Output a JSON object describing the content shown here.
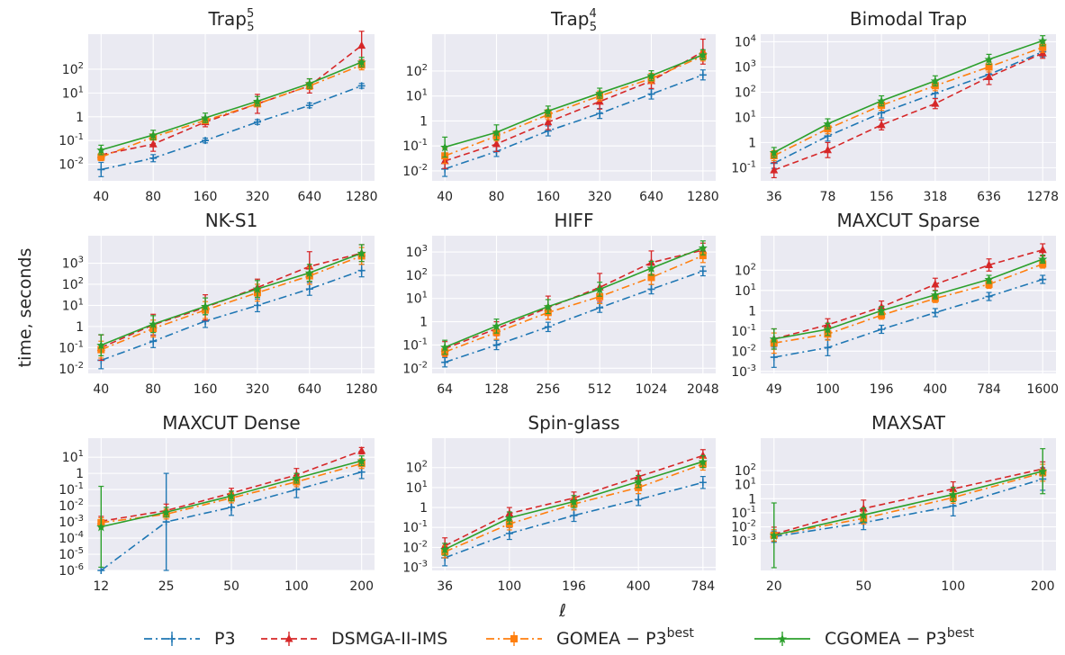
{
  "figure": {
    "ylabel": "time, seconds",
    "xlabel": "ℓ"
  },
  "legend": [
    {
      "label": "P3",
      "color": "#1f77b4",
      "dash": "dashdot",
      "marker": "plus"
    },
    {
      "label": "DSMGA-II-IMS",
      "color": "#d62728",
      "dash": "dashed",
      "marker": "triangle"
    },
    {
      "label": "GOMEA − P3",
      "sup": "best",
      "color": "#ff7f0e",
      "dash": "dashdot",
      "marker": "square"
    },
    {
      "label": "CGOMEA − P3",
      "sup": "best",
      "color": "#2ca02c",
      "dash": "solid",
      "marker": "star"
    }
  ],
  "chart_data": [
    {
      "type": "line",
      "title": "Trap",
      "title_sup": "5",
      "title_sub": "5",
      "categories": [
        "40",
        "80",
        "160",
        "320",
        "640",
        "1280"
      ],
      "yscale": "log",
      "ylim": [
        0.002,
        3000
      ],
      "yticks": [
        {
          "v": 0.01,
          "b": "10",
          "e": "-2"
        },
        {
          "v": 0.1,
          "b": "10",
          "e": "-1"
        },
        {
          "v": 1,
          "b": "1",
          "e": ""
        },
        {
          "v": 10,
          "b": "10",
          "e": "1"
        },
        {
          "v": 100,
          "b": "10",
          "e": "2"
        }
      ],
      "series": [
        {
          "name": "P3",
          "values": [
            0.006,
            0.018,
            0.1,
            0.6,
            3,
            20
          ],
          "err": [
            0.3,
            0.15,
            0.1,
            0.1,
            0.1,
            0.1
          ]
        },
        {
          "name": "DSMGA-II-IMS",
          "values": [
            0.025,
            0.07,
            0.6,
            3.5,
            20,
            1000
          ],
          "err": [
            0.2,
            0.3,
            0.2,
            0.4,
            0.3,
            0.6
          ]
        },
        {
          "name": "GOMEA",
          "values": [
            0.02,
            0.14,
            0.7,
            3.5,
            20,
            150
          ],
          "err": [
            0.15,
            0.1,
            0.1,
            0.1,
            0.15,
            0.2
          ]
        },
        {
          "name": "CGOMEA",
          "values": [
            0.04,
            0.17,
            0.9,
            4.5,
            25,
            200
          ],
          "err": [
            0.2,
            0.2,
            0.2,
            0.2,
            0.2,
            0.2
          ]
        }
      ]
    },
    {
      "type": "line",
      "title": "Trap",
      "title_sup": "4",
      "title_sub": "5",
      "categories": [
        "40",
        "80",
        "160",
        "320",
        "640",
        "1280"
      ],
      "yscale": "log",
      "ylim": [
        0.004,
        3000
      ],
      "yticks": [
        {
          "v": 0.01,
          "b": "10",
          "e": "-2"
        },
        {
          "v": 0.1,
          "b": "10",
          "e": "-1"
        },
        {
          "v": 1,
          "b": "1",
          "e": ""
        },
        {
          "v": 10,
          "b": "10",
          "e": "1"
        },
        {
          "v": 100,
          "b": "10",
          "e": "2"
        }
      ],
      "series": [
        {
          "name": "P3",
          "values": [
            0.012,
            0.06,
            0.4,
            2,
            12,
            70
          ],
          "err": [
            0.3,
            0.2,
            0.2,
            0.2,
            0.2,
            0.2
          ]
        },
        {
          "name": "DSMGA-II-IMS",
          "values": [
            0.025,
            0.12,
            0.9,
            6,
            40,
            600
          ],
          "err": [
            0.3,
            0.3,
            0.3,
            0.3,
            0.3,
            0.5
          ]
        },
        {
          "name": "GOMEA",
          "values": [
            0.04,
            0.25,
            1.8,
            10,
            50,
            400
          ],
          "err": [
            0.3,
            0.2,
            0.2,
            0.2,
            0.2,
            0.2
          ]
        },
        {
          "name": "CGOMEA",
          "values": [
            0.09,
            0.35,
            2.5,
            13,
            65,
            450
          ],
          "err": [
            0.4,
            0.3,
            0.2,
            0.2,
            0.2,
            0.2
          ]
        }
      ]
    },
    {
      "type": "line",
      "title": "Bimodal Trap",
      "title_sup": "",
      "title_sub": "",
      "categories": [
        "36",
        "78",
        "156",
        "318",
        "636",
        "1278"
      ],
      "yscale": "log",
      "ylim": [
        0.03,
        20000
      ],
      "yticks": [
        {
          "v": 0.1,
          "b": "10",
          "e": "-1"
        },
        {
          "v": 1,
          "b": "1",
          "e": ""
        },
        {
          "v": 10,
          "b": "10",
          "e": "1"
        },
        {
          "v": 100,
          "b": "10",
          "e": "2"
        },
        {
          "v": 1000,
          "b": "10",
          "e": "3"
        },
        {
          "v": 10000,
          "b": "10",
          "e": "4"
        }
      ],
      "series": [
        {
          "name": "P3",
          "values": [
            0.15,
            1.8,
            15,
            90,
            500,
            4000
          ],
          "err": [
            0.2,
            0.2,
            0.2,
            0.2,
            0.2,
            0.2
          ]
        },
        {
          "name": "DSMGA-II-IMS",
          "values": [
            0.08,
            0.5,
            5,
            35,
            400,
            3500
          ],
          "err": [
            0.3,
            0.3,
            0.2,
            0.2,
            0.3,
            0.2
          ]
        },
        {
          "name": "GOMEA",
          "values": [
            0.3,
            3.5,
            30,
            180,
            1000,
            6000
          ],
          "err": [
            0.2,
            0.2,
            0.2,
            0.2,
            0.2,
            0.2
          ]
        },
        {
          "name": "CGOMEA",
          "values": [
            0.4,
            5.5,
            45,
            280,
            2000,
            11000
          ],
          "err": [
            0.2,
            0.2,
            0.2,
            0.2,
            0.2,
            0.2
          ]
        }
      ]
    },
    {
      "type": "line",
      "title": "NK-S1",
      "title_sup": "",
      "title_sub": "",
      "categories": [
        "40",
        "80",
        "160",
        "320",
        "640",
        "1280"
      ],
      "yscale": "log",
      "ylim": [
        0.006,
        20000
      ],
      "yticks": [
        {
          "v": 0.01,
          "b": "10",
          "e": "-2"
        },
        {
          "v": 0.1,
          "b": "10",
          "e": "-1"
        },
        {
          "v": 1,
          "b": "1",
          "e": ""
        },
        {
          "v": 10,
          "b": "10",
          "e": "1"
        },
        {
          "v": 100,
          "b": "10",
          "e": "2"
        },
        {
          "v": 1000,
          "b": "10",
          "e": "3"
        }
      ],
      "series": [
        {
          "name": "P3",
          "values": [
            0.025,
            0.2,
            1.8,
            10,
            60,
            450
          ],
          "err": [
            0.4,
            0.3,
            0.3,
            0.3,
            0.3,
            0.3
          ]
        },
        {
          "name": "DSMGA-II-IMS",
          "values": [
            0.1,
            1.2,
            8,
            70,
            700,
            3000
          ],
          "err": [
            0.6,
            0.5,
            0.6,
            0.4,
            0.7,
            0.4
          ]
        },
        {
          "name": "GOMEA",
          "values": [
            0.08,
            0.8,
            6,
            40,
            250,
            2200
          ],
          "err": [
            0.4,
            0.4,
            0.4,
            0.4,
            0.4,
            0.4
          ]
        },
        {
          "name": "CGOMEA",
          "values": [
            0.13,
            1.3,
            9,
            60,
            350,
            3000
          ],
          "err": [
            0.5,
            0.4,
            0.4,
            0.4,
            0.4,
            0.4
          ]
        }
      ]
    },
    {
      "type": "line",
      "title": "HIFF",
      "title_sup": "",
      "title_sub": "",
      "categories": [
        "64",
        "128",
        "256",
        "512",
        "1024",
        "2048"
      ],
      "yscale": "log",
      "ylim": [
        0.006,
        5000
      ],
      "yticks": [
        {
          "v": 0.01,
          "b": "10",
          "e": "-2"
        },
        {
          "v": 0.1,
          "b": "10",
          "e": "-1"
        },
        {
          "v": 1,
          "b": "1",
          "e": ""
        },
        {
          "v": 10,
          "b": "10",
          "e": "1"
        },
        {
          "v": 100,
          "b": "10",
          "e": "2"
        },
        {
          "v": 1000,
          "b": "10",
          "e": "3"
        }
      ],
      "series": [
        {
          "name": "P3",
          "values": [
            0.018,
            0.1,
            0.6,
            4,
            25,
            150
          ],
          "err": [
            0.2,
            0.2,
            0.2,
            0.2,
            0.2,
            0.2
          ]
        },
        {
          "name": "DSMGA-II-IMS",
          "values": [
            0.07,
            0.5,
            4,
            30,
            350,
            1200
          ],
          "err": [
            0.3,
            0.3,
            0.5,
            0.6,
            0.5,
            0.3
          ]
        },
        {
          "name": "GOMEA",
          "values": [
            0.05,
            0.35,
            2.5,
            12,
            80,
            700
          ],
          "err": [
            0.2,
            0.3,
            0.3,
            0.3,
            0.3,
            0.3
          ]
        },
        {
          "name": "CGOMEA",
          "values": [
            0.08,
            0.65,
            4.5,
            25,
            200,
            1500
          ],
          "err": [
            0.3,
            0.3,
            0.3,
            0.3,
            0.3,
            0.3
          ]
        }
      ]
    },
    {
      "type": "line",
      "title": "MAXCUT Sparse",
      "title_sup": "",
      "title_sub": "",
      "categories": [
        "49",
        "100",
        "196",
        "400",
        "784",
        "1600"
      ],
      "yscale": "log",
      "ylim": [
        0.0008,
        5000
      ],
      "yticks": [
        {
          "v": 0.001,
          "b": "10",
          "e": "-3"
        },
        {
          "v": 0.01,
          "b": "10",
          "e": "-2"
        },
        {
          "v": 0.1,
          "b": "10",
          "e": "-1"
        },
        {
          "v": 1,
          "b": "1",
          "e": ""
        },
        {
          "v": 10,
          "b": "10",
          "e": "1"
        },
        {
          "v": 100,
          "b": "10",
          "e": "2"
        }
      ],
      "series": [
        {
          "name": "P3",
          "values": [
            0.005,
            0.015,
            0.12,
            0.8,
            5,
            35
          ],
          "err": [
            0.5,
            0.4,
            0.2,
            0.2,
            0.2,
            0.2
          ]
        },
        {
          "name": "DSMGA-II-IMS",
          "values": [
            0.04,
            0.2,
            1.5,
            20,
            180,
            1000
          ],
          "err": [
            0.5,
            0.3,
            0.3,
            0.3,
            0.3,
            0.3
          ]
        },
        {
          "name": "GOMEA",
          "values": [
            0.025,
            0.07,
            0.6,
            4,
            20,
            200
          ],
          "err": [
            0.5,
            0.3,
            0.2,
            0.2,
            0.2,
            0.2
          ]
        },
        {
          "name": "CGOMEA",
          "values": [
            0.04,
            0.12,
            1,
            6,
            35,
            350
          ],
          "err": [
            0.5,
            0.3,
            0.2,
            0.2,
            0.2,
            0.2
          ]
        }
      ]
    },
    {
      "type": "line",
      "title": "MAXCUT Dense",
      "title_sup": "",
      "title_sub": "",
      "categories": [
        "12",
        "25",
        "50",
        "100",
        "200"
      ],
      "yscale": "log",
      "ylim": [
        1e-06,
        150
      ],
      "yticks": [
        {
          "v": 1e-06,
          "b": "10",
          "e": "-6"
        },
        {
          "v": 1e-05,
          "b": "10",
          "e": "-5"
        },
        {
          "v": 0.0001,
          "b": "10",
          "e": "-4"
        },
        {
          "v": 0.001,
          "b": "10",
          "e": "-3"
        },
        {
          "v": 0.01,
          "b": "10",
          "e": "-2"
        },
        {
          "v": 0.1,
          "b": "10",
          "e": "-1"
        },
        {
          "v": 1,
          "b": "1",
          "e": ""
        },
        {
          "v": 10,
          "b": "10",
          "e": "1"
        }
      ],
      "series": [
        {
          "name": "P3",
          "values": [
            1e-06,
            0.001,
            0.008,
            0.1,
            1.2
          ],
          "err": [
            0,
            3,
            0.5,
            0.5,
            0.4
          ]
        },
        {
          "name": "DSMGA-II-IMS",
          "values": [
            0.0011,
            0.005,
            0.06,
            0.8,
            25
          ],
          "err": [
            0.3,
            0.4,
            0.3,
            0.4,
            0.2
          ]
        },
        {
          "name": "GOMEA",
          "values": [
            0.0009,
            0.003,
            0.03,
            0.3,
            4
          ],
          "err": [
            0.3,
            0.3,
            0.3,
            0.3,
            0.3
          ]
        },
        {
          "name": "CGOMEA",
          "values": [
            0.0005,
            0.004,
            0.04,
            0.5,
            6
          ],
          "err": [
            2.5,
            0.3,
            0.3,
            0.3,
            0.3
          ]
        }
      ]
    },
    {
      "type": "line",
      "title": "Spin-glass",
      "title_sup": "",
      "title_sub": "",
      "categories": [
        "36",
        "100",
        "196",
        "400",
        "784"
      ],
      "yscale": "log",
      "ylim": [
        0.0007,
        3000
      ],
      "yticks": [
        {
          "v": 0.001,
          "b": "10",
          "e": "-3"
        },
        {
          "v": 0.01,
          "b": "10",
          "e": "-2"
        },
        {
          "v": 0.1,
          "b": "10",
          "e": "-1"
        },
        {
          "v": 1,
          "b": "1",
          "e": ""
        },
        {
          "v": 10,
          "b": "10",
          "e": "1"
        },
        {
          "v": 100,
          "b": "10",
          "e": "2"
        }
      ],
      "series": [
        {
          "name": "P3",
          "values": [
            0.003,
            0.05,
            0.4,
            2.5,
            18
          ],
          "err": [
            0.4,
            0.3,
            0.3,
            0.3,
            0.3
          ]
        },
        {
          "name": "DSMGA-II-IMS",
          "values": [
            0.012,
            0.5,
            3,
            35,
            400
          ],
          "err": [
            0.4,
            0.3,
            0.3,
            0.3,
            0.3
          ]
        },
        {
          "name": "GOMEA",
          "values": [
            0.006,
            0.15,
            1.5,
            10,
            150
          ],
          "err": [
            0.3,
            0.3,
            0.3,
            0.3,
            0.3
          ]
        },
        {
          "name": "CGOMEA",
          "values": [
            0.008,
            0.3,
            2,
            20,
            200
          ],
          "err": [
            0.3,
            0.3,
            0.3,
            0.3,
            0.3
          ]
        }
      ]
    },
    {
      "type": "line",
      "title": "MAXSAT",
      "title_sup": "",
      "title_sub": "",
      "categories": [
        "20",
        "50",
        "100",
        "200"
      ],
      "yscale": "log",
      "ylim": [
        8e-06,
        20000
      ],
      "yticks": [
        {
          "v": 0.001,
          "b": "10",
          "e": "-3"
        },
        {
          "v": 0.01,
          "b": "10",
          "e": "-2"
        },
        {
          "v": 0.1,
          "b": "10",
          "e": "-1"
        },
        {
          "v": 1,
          "b": "1",
          "e": ""
        },
        {
          "v": 10,
          "b": "10",
          "e": "1"
        },
        {
          "v": 100,
          "b": "10",
          "e": "2"
        }
      ],
      "series": [
        {
          "name": "P3",
          "values": [
            0.002,
            0.02,
            0.3,
            25
          ],
          "err": [
            0.4,
            0.5,
            0.7,
            0.8
          ]
        },
        {
          "name": "DSMGA-II-IMS",
          "values": [
            0.003,
            0.2,
            5,
            130
          ],
          "err": [
            0.5,
            0.6,
            0.5,
            0.5
          ]
        },
        {
          "name": "GOMEA",
          "values": [
            0.0025,
            0.04,
            1.2,
            70
          ],
          "err": [
            0.4,
            0.4,
            0.4,
            0.6
          ]
        },
        {
          "name": "CGOMEA",
          "values": [
            0.0025,
            0.07,
            2,
            90
          ],
          "err": [
            2.3,
            0.5,
            0.5,
            1.6
          ]
        }
      ]
    }
  ]
}
